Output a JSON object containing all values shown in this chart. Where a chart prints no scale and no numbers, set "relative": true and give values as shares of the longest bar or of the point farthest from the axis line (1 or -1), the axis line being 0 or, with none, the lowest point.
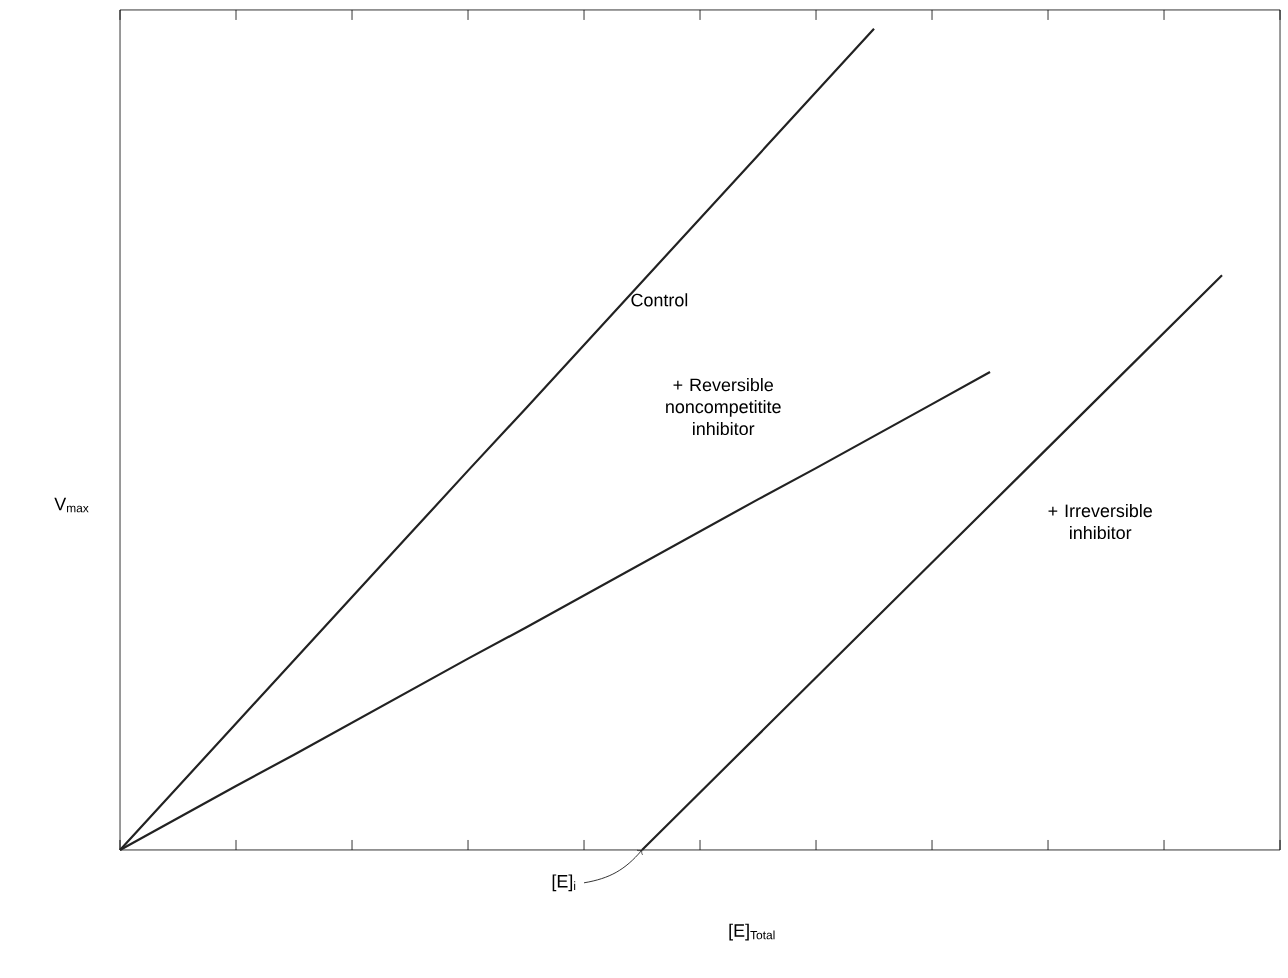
{
  "chart_data": {
    "type": "line",
    "relative": true,
    "xlabel": "[E]$_{Total}$",
    "ylabel": "V$_{max}$",
    "annotations": [
      "[E]$_{i}$"
    ],
    "marker": "none",
    "line_style": "solid",
    "grid": false,
    "categories": [
      null,
      null,
      null,
      null,
      null,
      null,
      null,
      null,
      null,
      null,
      null,
      null,
      null,
      null,
      null,
      null,
      null,
      null,
      null,
      null,
      null
    ],
    "series": [
      {
        "name": "Control",
        "color": "#222222",
        "values": [
          0,
          0.077,
          0.154,
          0.231,
          0.308,
          0.385,
          0.462,
          0.538,
          0.615,
          0.692,
          0.769,
          0.846,
          0.923,
          1,
          null,
          null,
          null,
          null,
          null,
          null,
          null
        ]
      },
      {
        "name": "+ Reversible noncompetitite inhibitor",
        "color": "#222222",
        "values": [
          0,
          0.039,
          0.078,
          0.116,
          0.155,
          0.194,
          0.233,
          0.271,
          0.31,
          0.349,
          0.388,
          0.427,
          0.465,
          0.504,
          0.543,
          0.582,
          null,
          null,
          null,
          null,
          null
        ]
      },
      {
        "name": "+ Irreversible inhibitor",
        "color": "#222222",
        "values": [
          null,
          null,
          null,
          null,
          null,
          null,
          null,
          null,
          null,
          0,
          0.07,
          0.14,
          0.21,
          0.28,
          0.35,
          0.42,
          0.49,
          0.56,
          0.63,
          0.7,
          null
        ]
      }
    ]
  }
}
